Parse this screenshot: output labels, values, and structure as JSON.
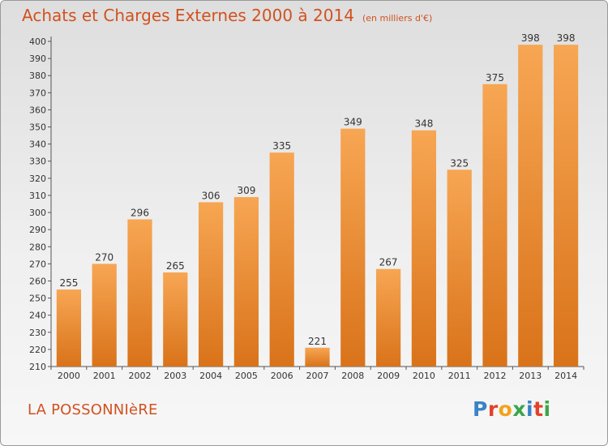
{
  "header": {
    "title": "Achats et Charges Externes 2000 à 2014",
    "units": "(en milliers d'€)"
  },
  "footer": {
    "commune": "LA POSSONNIèRE",
    "logo_letters": [
      "P",
      "r",
      "o",
      "x",
      "i",
      "t",
      "i"
    ]
  },
  "colors": {
    "title": "#d2511f",
    "bar_light": "#f7a653",
    "bar_dark": "#d9731a",
    "logo": [
      "#3a83c7",
      "#e2422b",
      "#f2a31b",
      "#3aa64a",
      "#3a83c7",
      "#e2422b",
      "#3aa64a"
    ]
  },
  "chart_data": {
    "type": "bar",
    "categories": [
      "2000",
      "2001",
      "2002",
      "2003",
      "2004",
      "2005",
      "2006",
      "2007",
      "2008",
      "2009",
      "2010",
      "2011",
      "2012",
      "2013",
      "2014"
    ],
    "values": [
      255,
      270,
      296,
      265,
      306,
      309,
      335,
      221,
      349,
      267,
      348,
      325,
      375,
      398,
      398
    ],
    "title": "Achats et Charges Externes 2000 à 2014",
    "units": "(en milliers d'€)",
    "ylim": [
      210,
      400
    ],
    "yticks": [
      210,
      220,
      230,
      240,
      250,
      260,
      270,
      280,
      290,
      300,
      310,
      320,
      330,
      340,
      350,
      360,
      370,
      380,
      390,
      400
    ],
    "grid": false,
    "data_labels": true
  }
}
